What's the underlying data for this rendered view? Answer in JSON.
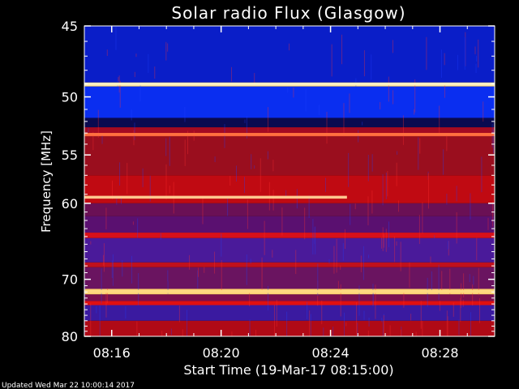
{
  "chart_data": {
    "type": "heatmap",
    "title": "Solar radio Flux (Glasgow)",
    "ylabel": "Frequency [MHz]",
    "xlabel": "Start Time (19-Mar-17 08:15:00)",
    "footer": "Updated Wed Mar 22 10:00:14 2017",
    "yscale": "reciprocal",
    "ylim": [
      45,
      80
    ],
    "xlim_minutes_after_0815": [
      0,
      15
    ],
    "y_ticks": [
      {
        "value": 45,
        "label": "45"
      },
      {
        "value": 50,
        "label": "50"
      },
      {
        "value": 55,
        "label": "55"
      },
      {
        "value": 60,
        "label": "60"
      },
      {
        "value": 70,
        "label": "70"
      },
      {
        "value": 80,
        "label": "80"
      }
    ],
    "x_ticks": [
      {
        "value": 1,
        "label": "08:16"
      },
      {
        "value": 5,
        "label": "08:20"
      },
      {
        "value": 9,
        "label": "08:24"
      },
      {
        "value": 13,
        "label": "08:28"
      }
    ],
    "bands": [
      {
        "from": 45,
        "to": 48.9,
        "color": "#0a1ec8"
      },
      {
        "from": 48.9,
        "to": 49.2,
        "color": "#ffe08a"
      },
      {
        "from": 49.2,
        "to": 51.7,
        "color": "#0a2ef0"
      },
      {
        "from": 51.7,
        "to": 52.5,
        "color": "#0a0a50"
      },
      {
        "from": 52.5,
        "to": 53.0,
        "color": "#a40a22"
      },
      {
        "from": 53.0,
        "to": 53.3,
        "color": "#ff5533"
      },
      {
        "from": 53.3,
        "to": 57.0,
        "color": "#9a0e1e"
      },
      {
        "from": 57.0,
        "to": 60.0,
        "color": "#c00a12"
      },
      {
        "from": 60.0,
        "to": 61.5,
        "color": "#6a1055"
      },
      {
        "from": 61.5,
        "to": 63.5,
        "color": "#5a1070"
      },
      {
        "from": 63.5,
        "to": 64.2,
        "color": "#d8101a"
      },
      {
        "from": 64.2,
        "to": 67.5,
        "color": "#4a1a9a"
      },
      {
        "from": 67.5,
        "to": 68.2,
        "color": "#c0101c"
      },
      {
        "from": 68.2,
        "to": 71.5,
        "color": "#6a1460"
      },
      {
        "from": 71.5,
        "to": 72.4,
        "color": "#ffd070"
      },
      {
        "from": 72.4,
        "to": 73.5,
        "color": "#7a1050"
      },
      {
        "from": 73.5,
        "to": 74.2,
        "color": "#e01010"
      },
      {
        "from": 74.2,
        "to": 77.0,
        "color": "#3a1aa0"
      },
      {
        "from": 77.0,
        "to": 80.0,
        "color": "#b00a16"
      }
    ],
    "lines": [
      {
        "freq": 49.0,
        "t_start": 0,
        "t_end": 15,
        "color": "#fff0c0"
      },
      {
        "freq": 53.1,
        "t_start": 0,
        "t_end": 15,
        "color": "#ff7040"
      },
      {
        "freq": 59.3,
        "t_start": 0,
        "t_end": 9.6,
        "color": "#ffc890"
      },
      {
        "freq": 71.9,
        "t_start": 0,
        "t_end": 15,
        "color": "#ffd880"
      }
    ]
  }
}
